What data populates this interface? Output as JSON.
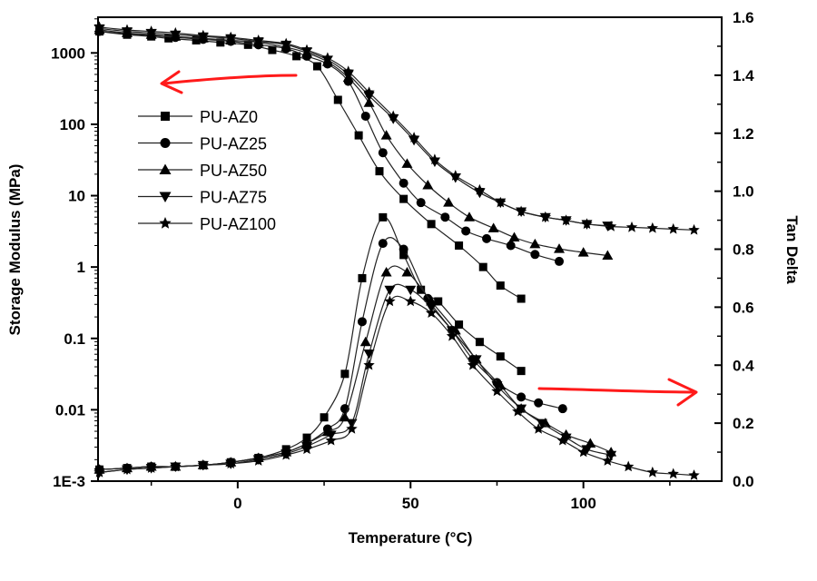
{
  "chart_data": {
    "type": "line",
    "title": "",
    "xlabel": "Temperature (°C)",
    "ylabel_left": "Storage Modulus (MPa)",
    "ylabel_right": "Tan Delta",
    "xlim": [
      -40.4,
      140
    ],
    "ylim_left": [
      0.001,
      3162
    ],
    "ylim_right": [
      0.0,
      1.6
    ],
    "yscale_left": "log",
    "xticks": [
      0,
      50,
      100
    ],
    "xticks_minor": [
      -25,
      25,
      75,
      125
    ],
    "yticks_left": [
      {
        "value": 1000,
        "label": "1000"
      },
      {
        "value": 100,
        "label": "100"
      },
      {
        "value": 10,
        "label": "10"
      },
      {
        "value": 1,
        "label": "1"
      },
      {
        "value": 0.1,
        "label": "0.1"
      },
      {
        "value": 0.01,
        "label": "0.01"
      },
      {
        "value": 0.001,
        "label": "1E-3"
      }
    ],
    "yticks_right": [
      {
        "value": 0.0,
        "label": "0.0"
      },
      {
        "value": 0.2,
        "label": "0.2"
      },
      {
        "value": 0.4,
        "label": "0.4"
      },
      {
        "value": 0.6,
        "label": "0.6"
      },
      {
        "value": 0.8,
        "label": "0.8"
      },
      {
        "value": 1.0,
        "label": "1.0"
      },
      {
        "value": 1.2,
        "label": "1.2"
      },
      {
        "value": 1.4,
        "label": "1.4"
      },
      {
        "value": 1.6,
        "label": "1.6"
      }
    ],
    "legend_position": "upper-left",
    "grid": false,
    "annotations": [
      {
        "type": "arrow",
        "direction": "left",
        "meaning": "storage modulus curves read on left axis",
        "color": "#ff1a1a"
      },
      {
        "type": "arrow",
        "direction": "right",
        "meaning": "tan delta curves read on right axis",
        "color": "#ff1a1a"
      }
    ],
    "series": [
      {
        "name": "PU-AZ0",
        "marker": "square",
        "storage_modulus": {
          "x": [
            -40,
            -32,
            -25,
            -20,
            -12,
            -5,
            3,
            10,
            17,
            23,
            29,
            35,
            41,
            48,
            56,
            64,
            71,
            76,
            82
          ],
          "y": [
            2000,
            1800,
            1700,
            1600,
            1500,
            1400,
            1300,
            1100,
            900,
            650,
            220,
            70,
            22,
            9,
            4,
            2,
            1,
            0.55,
            0.36
          ]
        },
        "tan_delta": {
          "x": [
            -40,
            -32,
            -25,
            -18,
            -10,
            -2,
            6,
            14,
            20,
            25,
            31,
            36,
            42,
            48,
            53,
            58,
            64,
            70,
            76,
            82
          ],
          "y": [
            0.04,
            0.045,
            0.05,
            0.05,
            0.055,
            0.065,
            0.08,
            0.11,
            0.15,
            0.22,
            0.37,
            0.7,
            0.91,
            0.78,
            0.66,
            0.62,
            0.54,
            0.48,
            0.43,
            0.38
          ]
        }
      },
      {
        "name": "PU-AZ25",
        "marker": "circle",
        "storage_modulus": {
          "x": [
            -40,
            -32,
            -25,
            -18,
            -10,
            -2,
            6,
            14,
            20,
            26,
            32,
            37,
            42,
            48,
            53,
            60,
            66,
            72,
            79,
            86,
            93
          ],
          "y": [
            2000,
            1850,
            1750,
            1650,
            1550,
            1450,
            1300,
            1150,
            900,
            700,
            400,
            130,
            40,
            15,
            8,
            5,
            3.2,
            2.5,
            2.0,
            1.5,
            1.2
          ]
        },
        "tan_delta": {
          "x": [
            -40,
            -32,
            -25,
            -18,
            -10,
            -2,
            6,
            14,
            20,
            26,
            31,
            36,
            42,
            48,
            55,
            62,
            68,
            75,
            82,
            87,
            94
          ],
          "y": [
            0.04,
            0.045,
            0.05,
            0.05,
            0.055,
            0.065,
            0.08,
            0.1,
            0.13,
            0.18,
            0.25,
            0.55,
            0.82,
            0.8,
            0.63,
            0.52,
            0.42,
            0.34,
            0.29,
            0.27,
            0.25
          ]
        }
      },
      {
        "name": "PU-AZ50",
        "marker": "triangle-up",
        "storage_modulus": {
          "x": [
            -40,
            -32,
            -25,
            -18,
            -10,
            -2,
            6,
            14,
            20,
            26,
            32,
            38,
            43,
            49,
            55,
            61,
            67,
            74,
            80,
            86,
            93,
            100,
            107
          ],
          "y": [
            2100,
            1900,
            1800,
            1700,
            1600,
            1500,
            1400,
            1200,
            1000,
            750,
            450,
            200,
            70,
            28,
            14,
            8,
            5,
            3.5,
            2.6,
            2.1,
            1.8,
            1.6,
            1.45
          ]
        },
        "tan_delta": {
          "x": [
            -40,
            -32,
            -25,
            -18,
            -10,
            -2,
            6,
            14,
            20,
            26,
            31,
            37,
            43,
            49,
            56,
            63,
            69,
            76,
            82,
            89,
            95,
            102,
            108
          ],
          "y": [
            0.04,
            0.045,
            0.05,
            0.05,
            0.055,
            0.065,
            0.08,
            0.1,
            0.13,
            0.17,
            0.22,
            0.48,
            0.72,
            0.72,
            0.62,
            0.52,
            0.42,
            0.33,
            0.25,
            0.2,
            0.16,
            0.13,
            0.1
          ]
        }
      },
      {
        "name": "PU-AZ75",
        "marker": "triangle-down",
        "storage_modulus": {
          "x": [
            -40,
            -32,
            -25,
            -18,
            -10,
            -2,
            6,
            14,
            20,
            26,
            32,
            38,
            45,
            51,
            57,
            63,
            70,
            76,
            82,
            89,
            95,
            101,
            107
          ],
          "y": [
            2200,
            2000,
            1900,
            1800,
            1700,
            1600,
            1450,
            1300,
            1050,
            800,
            500,
            250,
            120,
            60,
            30,
            18,
            11,
            8,
            6,
            5,
            4.5,
            4,
            3.8
          ]
        },
        "tan_delta": {
          "x": [
            -40,
            -32,
            -25,
            -18,
            -10,
            -2,
            6,
            14,
            20,
            27,
            33,
            38,
            44,
            50,
            56,
            62,
            69,
            75,
            82,
            88,
            95,
            101,
            108
          ],
          "y": [
            0.03,
            0.04,
            0.045,
            0.05,
            0.055,
            0.06,
            0.075,
            0.095,
            0.12,
            0.16,
            0.2,
            0.44,
            0.66,
            0.66,
            0.6,
            0.52,
            0.42,
            0.33,
            0.25,
            0.2,
            0.15,
            0.11,
            0.09
          ]
        }
      },
      {
        "name": "PU-AZ100",
        "marker": "star",
        "storage_modulus": {
          "x": [
            -40,
            -32,
            -25,
            -18,
            -10,
            -2,
            6,
            14,
            20,
            26,
            32,
            38,
            45,
            51,
            57,
            63,
            70,
            76,
            82,
            89,
            95,
            101,
            108,
            114,
            120,
            126,
            132
          ],
          "y": [
            2300,
            2100,
            2000,
            1900,
            1750,
            1650,
            1500,
            1350,
            1100,
            850,
            550,
            280,
            130,
            65,
            32,
            19,
            12,
            8,
            6,
            5,
            4.5,
            4,
            3.7,
            3.6,
            3.5,
            3.4,
            3.3
          ]
        },
        "tan_delta": {
          "x": [
            -40,
            -32,
            -25,
            -18,
            -10,
            -2,
            6,
            14,
            20,
            27,
            33,
            38,
            44,
            50,
            56,
            62,
            68,
            75,
            81,
            87,
            94,
            100,
            107,
            113,
            120,
            126,
            132
          ],
          "y": [
            0.03,
            0.04,
            0.045,
            0.05,
            0.055,
            0.06,
            0.07,
            0.09,
            0.11,
            0.14,
            0.18,
            0.4,
            0.62,
            0.62,
            0.58,
            0.5,
            0.4,
            0.31,
            0.24,
            0.18,
            0.14,
            0.1,
            0.07,
            0.05,
            0.03,
            0.025,
            0.02
          ]
        }
      }
    ]
  }
}
